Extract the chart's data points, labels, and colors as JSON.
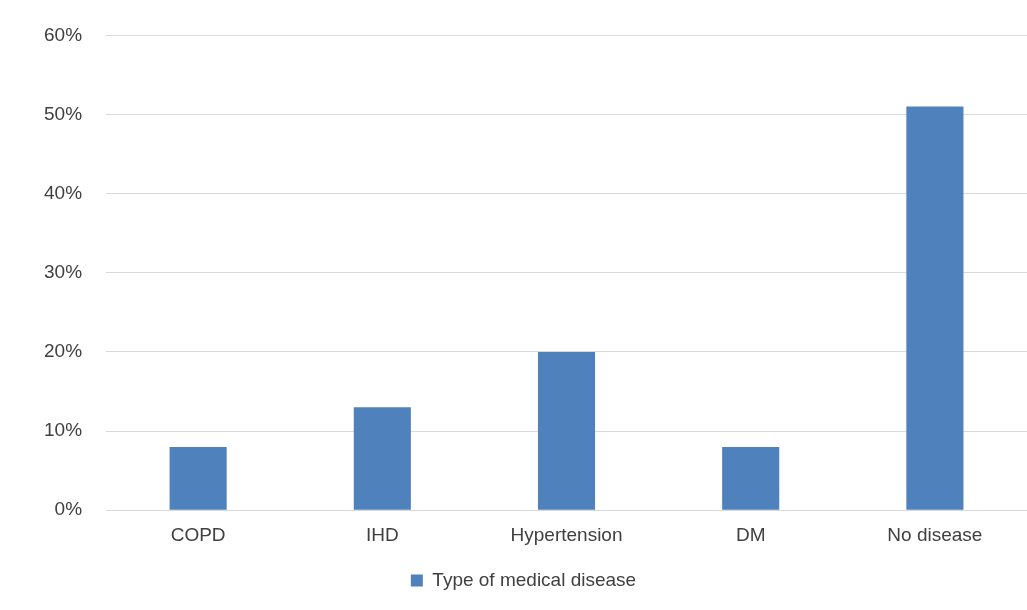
{
  "chart_data": {
    "type": "bar",
    "categories": [
      "COPD",
      "IHD",
      "Hypertension",
      "DM",
      "No disease"
    ],
    "series": [
      {
        "name": "Type of medical disease",
        "color": "#4f81bd",
        "values": [
          8,
          13,
          20,
          8,
          51
        ]
      }
    ],
    "ylim": [
      0,
      60
    ],
    "yticks": [
      {
        "value": 0,
        "label": "0%"
      },
      {
        "value": 10,
        "label": "10%"
      },
      {
        "value": 20,
        "label": "20%"
      },
      {
        "value": 30,
        "label": "30%"
      },
      {
        "value": 40,
        "label": "40%"
      },
      {
        "value": 50,
        "label": "50%"
      },
      {
        "value": 60,
        "label": "60%"
      }
    ],
    "grid": "y",
    "legend": "bottom"
  }
}
